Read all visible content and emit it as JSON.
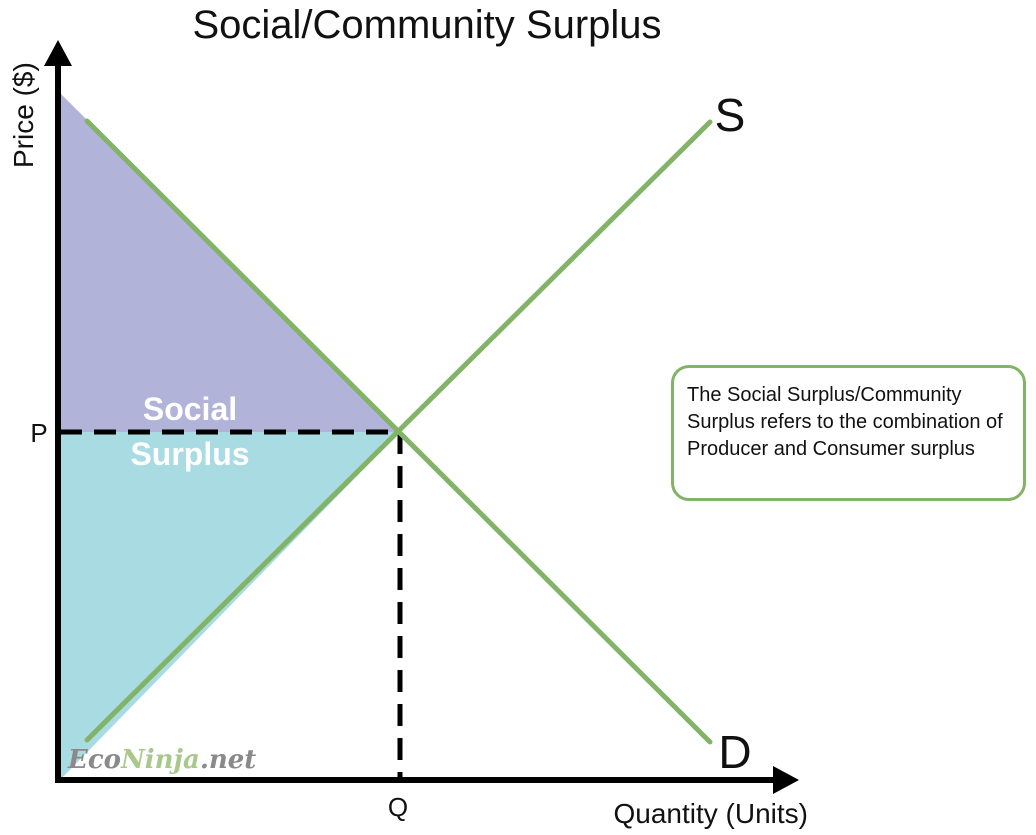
{
  "title": "Social/Community Surplus",
  "axes": {
    "y_label": "Price ($)",
    "x_label": "Quantity (Units)",
    "y_tick": "P",
    "x_tick": "Q"
  },
  "curves": {
    "supply_label": "S",
    "demand_label": "D"
  },
  "areas": {
    "label_line1": "Social",
    "label_line2": "Surplus"
  },
  "note": "The Social Surplus/Community Surplus refers to the combination of Producer and Consumer surplus",
  "watermark": {
    "part1": "Eco",
    "part2": "Ninja",
    "part3": ".net"
  },
  "colors": {
    "curve": "#82b366",
    "consumer_surplus": "#b1b4d8",
    "producer_surplus": "#a9dbe2",
    "axis": "#000000"
  }
}
